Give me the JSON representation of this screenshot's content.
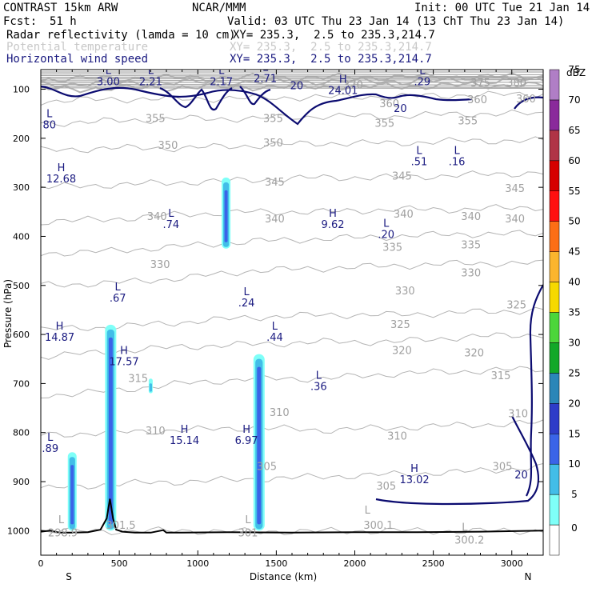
{
  "header": {
    "model": "CONTRAST 15km ARW",
    "org": "NCAR/MMM",
    "init": "Init: 00 UTC Tue 21 Jan 14",
    "fcst_label": "Fcst:",
    "fcst_value": "51 h",
    "valid": "Valid: 03 UTC Thu 23 Jan 14 (13 ChT Thu 23 Jan 14)",
    "fields": [
      {
        "name": "Radar reflectivity (lamda = 10 cm)",
        "xy": "XY= 235.3,  2.5 to 235.3,214.7",
        "color": "#000000"
      },
      {
        "name": "Potential temperature",
        "xy": "XY= 235.3,  2.5 to 235.3,214.7",
        "color": "#c8c8c8"
      },
      {
        "name": "Horizontal wind speed",
        "xy": "XY= 235.3,  2.5 to 235.3,214.7",
        "color": "#1a1a80"
      }
    ]
  },
  "chart_data": {
    "type": "contour-cross-section",
    "xlabel": "Distance (km)",
    "ylabel": "Pressure (hPa)",
    "xlim": [
      0,
      3200
    ],
    "ylim": [
      1050,
      60
    ],
    "x_ticks": [
      0,
      500,
      1000,
      1500,
      2000,
      2500,
      3000
    ],
    "y_ticks": [
      100,
      200,
      300,
      400,
      500,
      600,
      700,
      800,
      900,
      1000
    ],
    "x_end_labels": {
      "left": "S",
      "right": "N"
    },
    "theta_isolines": [
      {
        "value": 300,
        "p": [
          1000,
          1001,
          1000,
          1002,
          1001,
          1000,
          1001,
          1000
        ]
      },
      {
        "value": 305,
        "p": [
          915,
          905,
          900,
          895,
          890,
          885,
          880,
          870
        ]
      },
      {
        "value": 310,
        "p": [
          805,
          800,
          795,
          790,
          795,
          790,
          785,
          780
        ]
      },
      {
        "value": 315,
        "p": [
          725,
          715,
          700,
          690,
          690,
          680,
          675,
          670
        ]
      },
      {
        "value": 320,
        "p": [
          645,
          635,
          625,
          620,
          615,
          615,
          605,
          600
        ]
      },
      {
        "value": 325,
        "p": [
          590,
          585,
          575,
          565,
          560,
          560,
          555,
          550
        ]
      },
      {
        "value": 330,
        "p": [
          500,
          495,
          485,
          470,
          465,
          460,
          455,
          455
        ]
      },
      {
        "value": 335,
        "p": [
          435,
          430,
          420,
          410,
          405,
          400,
          395,
          395
        ]
      },
      {
        "value": 340,
        "p": [
          370,
          365,
          355,
          350,
          350,
          345,
          345,
          340
        ]
      },
      {
        "value": 345,
        "p": [
          300,
          295,
          290,
          285,
          280,
          280,
          275,
          270
        ]
      },
      {
        "value": 350,
        "p": [
          225,
          220,
          220,
          215,
          210,
          210,
          205,
          205
        ]
      },
      {
        "value": 355,
        "p": [
          170,
          165,
          160,
          160,
          155,
          155,
          150,
          150
        ]
      },
      {
        "value": 360,
        "p": [
          125,
          120,
          120,
          118,
          116,
          115,
          112,
          110
        ]
      },
      {
        "value": 370,
        "p": [
          100,
          98,
          96,
          95,
          95,
          94,
          92,
          92
        ]
      },
      {
        "value": 375,
        "p": [
          90,
          88,
          86,
          85,
          84,
          84,
          83,
          82
        ]
      },
      {
        "value": 380,
        "p": [
          80,
          78,
          77,
          76,
          76,
          75,
          75,
          74
        ]
      }
    ],
    "theta_x": [
      0,
      450,
      900,
      1350,
      1800,
      2250,
      2700,
      3200
    ],
    "isoline_labels": [
      {
        "text": "355",
        "x": 730,
        "p": 160
      },
      {
        "text": "355",
        "x": 1480,
        "p": 160
      },
      {
        "text": "355",
        "x": 2190,
        "p": 170
      },
      {
        "text": "355",
        "x": 2720,
        "p": 165
      },
      {
        "text": "360",
        "x": 2220,
        "p": 130
      },
      {
        "text": "360",
        "x": 2780,
        "p": 122
      },
      {
        "text": "360",
        "x": 3090,
        "p": 120
      },
      {
        "text": "370",
        "x": 1990,
        "p": 92
      },
      {
        "text": "375",
        "x": 2800,
        "p": 88
      },
      {
        "text": "380",
        "x": 3030,
        "p": 88
      },
      {
        "text": "350",
        "x": 810,
        "p": 215
      },
      {
        "text": "350",
        "x": 1480,
        "p": 210
      },
      {
        "text": "345",
        "x": 1490,
        "p": 290
      },
      {
        "text": "345",
        "x": 2300,
        "p": 278
      },
      {
        "text": "345",
        "x": 3020,
        "p": 303
      },
      {
        "text": "340",
        "x": 740,
        "p": 360
      },
      {
        "text": "340",
        "x": 1490,
        "p": 365
      },
      {
        "text": "340",
        "x": 2310,
        "p": 355
      },
      {
        "text": "340",
        "x": 2740,
        "p": 360
      },
      {
        "text": "340",
        "x": 3020,
        "p": 365
      },
      {
        "text": "335",
        "x": 2240,
        "p": 423
      },
      {
        "text": "335",
        "x": 2740,
        "p": 418
      },
      {
        "text": "330",
        "x": 760,
        "p": 458
      },
      {
        "text": "330",
        "x": 2320,
        "p": 512
      },
      {
        "text": "330",
        "x": 2740,
        "p": 475
      },
      {
        "text": "325",
        "x": 2290,
        "p": 580
      },
      {
        "text": "325",
        "x": 3030,
        "p": 540
      },
      {
        "text": "320",
        "x": 2300,
        "p": 633
      },
      {
        "text": "320",
        "x": 2760,
        "p": 638
      },
      {
        "text": "315",
        "x": 620,
        "p": 690
      },
      {
        "text": "315",
        "x": 2930,
        "p": 685
      },
      {
        "text": "310",
        "x": 730,
        "p": 797
      },
      {
        "text": "310",
        "x": 1520,
        "p": 760
      },
      {
        "text": "310",
        "x": 2270,
        "p": 808
      },
      {
        "text": "310",
        "x": 3040,
        "p": 762
      },
      {
        "text": "305",
        "x": 1440,
        "p": 870
      },
      {
        "text": "305",
        "x": 2200,
        "p": 910
      },
      {
        "text": "305",
        "x": 2940,
        "p": 870
      },
      {
        "text": "300.1",
        "x": 2150,
        "p": 990
      },
      {
        "text": "300.2",
        "x": 2730,
        "p": 1020
      },
      {
        "text": "298.9",
        "x": 140,
        "p": 1005
      },
      {
        "text": "301.5",
        "x": 510,
        "p": 990
      },
      {
        "text": "301",
        "x": 1320,
        "p": 1005
      }
    ],
    "theta_extrema": [
      {
        "text": "L",
        "x": 130,
        "p": 985
      },
      {
        "text": "L",
        "x": 1320,
        "p": 985
      },
      {
        "text": "L",
        "x": 2080,
        "p": 965
      },
      {
        "text": "L",
        "x": 2700,
        "p": 1000
      }
    ],
    "wind_extrema": [
      {
        "kind": "L",
        "value": "3.00",
        "x": 430,
        "p": 92
      },
      {
        "kind": "L",
        "value": "2.21",
        "x": 700,
        "p": 92
      },
      {
        "kind": "L",
        "value": "2.17",
        "x": 1150,
        "p": 92
      },
      {
        "kind": "L",
        "value": "2.71",
        "x": 1430,
        "p": 85
      },
      {
        "kind": "H",
        "value": "24.01",
        "x": 1925,
        "p": 110
      },
      {
        "kind": "L",
        "value": ".29",
        "x": 2430,
        "p": 92
      },
      {
        "kind": "L",
        "value": "80",
        "x": 55,
        "p": 180
      },
      {
        "kind": "H",
        "value": "12.68",
        "x": 130,
        "p": 290
      },
      {
        "kind": "L",
        "value": ".51",
        "x": 2410,
        "p": 255
      },
      {
        "kind": "L",
        "value": ".16",
        "x": 2650,
        "p": 255
      },
      {
        "kind": "L",
        "value": ".74",
        "x": 830,
        "p": 383
      },
      {
        "kind": "H",
        "value": "9.62",
        "x": 1860,
        "p": 383
      },
      {
        "kind": "L",
        "value": ".20",
        "x": 2200,
        "p": 403
      },
      {
        "kind": "L",
        "value": ".67",
        "x": 490,
        "p": 533
      },
      {
        "kind": "L",
        "value": ".24",
        "x": 1310,
        "p": 543
      },
      {
        "kind": "H",
        "value": "14.87",
        "x": 120,
        "p": 613
      },
      {
        "kind": "L",
        "value": ".44",
        "x": 1490,
        "p": 613
      },
      {
        "kind": "H",
        "value": "17.57",
        "x": 530,
        "p": 663
      },
      {
        "kind": "L",
        "value": ".36",
        "x": 1770,
        "p": 713
      },
      {
        "kind": "H",
        "value": "15.14",
        "x": 915,
        "p": 823
      },
      {
        "kind": "H",
        "value": "6.97",
        "x": 1310,
        "p": 823
      },
      {
        "kind": "L",
        "value": ".89",
        "x": 60,
        "p": 840
      },
      {
        "kind": "H",
        "value": "13.02",
        "x": 2380,
        "p": 903
      }
    ],
    "wind_contour_labels": [
      {
        "text": "20",
        "x": 1630,
        "p": 92
      },
      {
        "text": "20",
        "x": 2290,
        "p": 138
      },
      {
        "text": "20",
        "x": 3060,
        "p": 885
      }
    ],
    "reflectivity_cells": [
      {
        "x": 200,
        "p_top": 840,
        "p_bot": 1000,
        "dbz_max": 15
      },
      {
        "x": 445,
        "p_top": 580,
        "p_bot": 1000,
        "dbz_max": 20
      },
      {
        "x": 700,
        "p_top": 690,
        "p_bot": 720,
        "dbz_max": 10
      },
      {
        "x": 1180,
        "p_top": 280,
        "p_bot": 425,
        "dbz_max": 15
      },
      {
        "x": 1390,
        "p_top": 640,
        "p_bot": 1000,
        "dbz_max": 20
      }
    ],
    "terrain": {
      "x": [
        0,
        60,
        120,
        200,
        300,
        380,
        420,
        440,
        460,
        480,
        520,
        600,
        700,
        780,
        800,
        900,
        1200,
        1600,
        2000,
        2400,
        2800,
        3200
      ],
      "p": [
        1002,
        1000,
        1004,
        1004,
        1003,
        998,
        975,
        935,
        975,
        998,
        1002,
        1004,
        1004,
        999,
        1004,
        1004,
        1003,
        1004,
        1003,
        1003,
        1002,
        1000
      ]
    },
    "colorbar": {
      "unit": "dBZ",
      "levels": [
        0,
        5,
        10,
        15,
        20,
        25,
        30,
        35,
        40,
        45,
        50,
        55,
        60,
        65,
        70,
        75
      ],
      "colors": [
        "#ffffff",
        "#7ffff8",
        "#42bde8",
        "#3a64e8",
        "#2e3cc8",
        "#2b86b8",
        "#12a828",
        "#4cd63a",
        "#f6d900",
        "#fbb52d",
        "#fc6e16",
        "#ff1010",
        "#d60000",
        "#b03446",
        "#8a2a9b",
        "#b07ec6"
      ]
    }
  }
}
